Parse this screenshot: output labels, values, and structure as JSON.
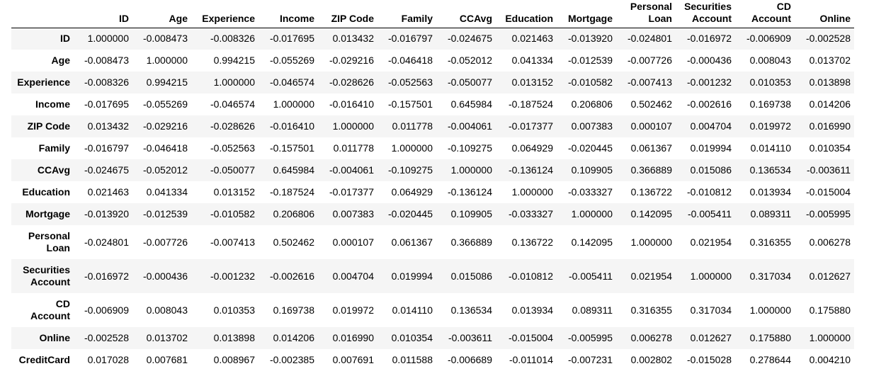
{
  "columns": [
    "ID",
    "Age",
    "Experience",
    "Income",
    "ZIP Code",
    "Family",
    "CCAvg",
    "Education",
    "Mortgage",
    "Personal Loan",
    "Securities Account",
    "CD Account",
    "Online"
  ],
  "header_lines": [
    [
      "ID"
    ],
    [
      "Age"
    ],
    [
      "Experience"
    ],
    [
      "Income"
    ],
    [
      "ZIP Code"
    ],
    [
      "Family"
    ],
    [
      "CCAvg"
    ],
    [
      "Education"
    ],
    [
      "Mortgage"
    ],
    [
      "Personal",
      "Loan"
    ],
    [
      "Securities",
      "Account"
    ],
    [
      "CD",
      "Account"
    ],
    [
      "Online"
    ]
  ],
  "rows": [
    {
      "label_lines": [
        "ID"
      ],
      "values": [
        "1.000000",
        "-0.008473",
        "-0.008326",
        "-0.017695",
        "0.013432",
        "-0.016797",
        "-0.024675",
        "0.021463",
        "-0.013920",
        "-0.024801",
        "-0.016972",
        "-0.006909",
        "-0.002528"
      ]
    },
    {
      "label_lines": [
        "Age"
      ],
      "values": [
        "-0.008473",
        "1.000000",
        "0.994215",
        "-0.055269",
        "-0.029216",
        "-0.046418",
        "-0.052012",
        "0.041334",
        "-0.012539",
        "-0.007726",
        "-0.000436",
        "0.008043",
        "0.013702"
      ]
    },
    {
      "label_lines": [
        "Experience"
      ],
      "values": [
        "-0.008326",
        "0.994215",
        "1.000000",
        "-0.046574",
        "-0.028626",
        "-0.052563",
        "-0.050077",
        "0.013152",
        "-0.010582",
        "-0.007413",
        "-0.001232",
        "0.010353",
        "0.013898"
      ]
    },
    {
      "label_lines": [
        "Income"
      ],
      "values": [
        "-0.017695",
        "-0.055269",
        "-0.046574",
        "1.000000",
        "-0.016410",
        "-0.157501",
        "0.645984",
        "-0.187524",
        "0.206806",
        "0.502462",
        "-0.002616",
        "0.169738",
        "0.014206"
      ]
    },
    {
      "label_lines": [
        "ZIP Code"
      ],
      "values": [
        "0.013432",
        "-0.029216",
        "-0.028626",
        "-0.016410",
        "1.000000",
        "0.011778",
        "-0.004061",
        "-0.017377",
        "0.007383",
        "0.000107",
        "0.004704",
        "0.019972",
        "0.016990"
      ]
    },
    {
      "label_lines": [
        "Family"
      ],
      "values": [
        "-0.016797",
        "-0.046418",
        "-0.052563",
        "-0.157501",
        "0.011778",
        "1.000000",
        "-0.109275",
        "0.064929",
        "-0.020445",
        "0.061367",
        "0.019994",
        "0.014110",
        "0.010354"
      ]
    },
    {
      "label_lines": [
        "CCAvg"
      ],
      "values": [
        "-0.024675",
        "-0.052012",
        "-0.050077",
        "0.645984",
        "-0.004061",
        "-0.109275",
        "1.000000",
        "-0.136124",
        "0.109905",
        "0.366889",
        "0.015086",
        "0.136534",
        "-0.003611"
      ]
    },
    {
      "label_lines": [
        "Education"
      ],
      "values": [
        "0.021463",
        "0.041334",
        "0.013152",
        "-0.187524",
        "-0.017377",
        "0.064929",
        "-0.136124",
        "1.000000",
        "-0.033327",
        "0.136722",
        "-0.010812",
        "0.013934",
        "-0.015004"
      ]
    },
    {
      "label_lines": [
        "Mortgage"
      ],
      "values": [
        "-0.013920",
        "-0.012539",
        "-0.010582",
        "0.206806",
        "0.007383",
        "-0.020445",
        "0.109905",
        "-0.033327",
        "1.000000",
        "0.142095",
        "-0.005411",
        "0.089311",
        "-0.005995"
      ]
    },
    {
      "label_lines": [
        "Personal",
        "Loan"
      ],
      "values": [
        "-0.024801",
        "-0.007726",
        "-0.007413",
        "0.502462",
        "0.000107",
        "0.061367",
        "0.366889",
        "0.136722",
        "0.142095",
        "1.000000",
        "0.021954",
        "0.316355",
        "0.006278"
      ]
    },
    {
      "label_lines": [
        "Securities",
        "Account"
      ],
      "values": [
        "-0.016972",
        "-0.000436",
        "-0.001232",
        "-0.002616",
        "0.004704",
        "0.019994",
        "0.015086",
        "-0.010812",
        "-0.005411",
        "0.021954",
        "1.000000",
        "0.317034",
        "0.012627"
      ]
    },
    {
      "label_lines": [
        "CD",
        "Account"
      ],
      "values": [
        "-0.006909",
        "0.008043",
        "0.010353",
        "0.169738",
        "0.019972",
        "0.014110",
        "0.136534",
        "0.013934",
        "0.089311",
        "0.316355",
        "0.317034",
        "1.000000",
        "0.175880"
      ]
    },
    {
      "label_lines": [
        "Online"
      ],
      "values": [
        "-0.002528",
        "0.013702",
        "0.013898",
        "0.014206",
        "0.016990",
        "0.010354",
        "-0.003611",
        "-0.015004",
        "-0.005995",
        "0.006278",
        "0.012627",
        "0.175880",
        "1.000000"
      ]
    },
    {
      "label_lines": [
        "CreditCard"
      ],
      "values": [
        "0.017028",
        "0.007681",
        "0.008967",
        "-0.002385",
        "0.007691",
        "0.011588",
        "-0.006689",
        "-0.011014",
        "-0.007231",
        "0.002802",
        "-0.015028",
        "0.278644",
        "0.004210"
      ]
    }
  ]
}
